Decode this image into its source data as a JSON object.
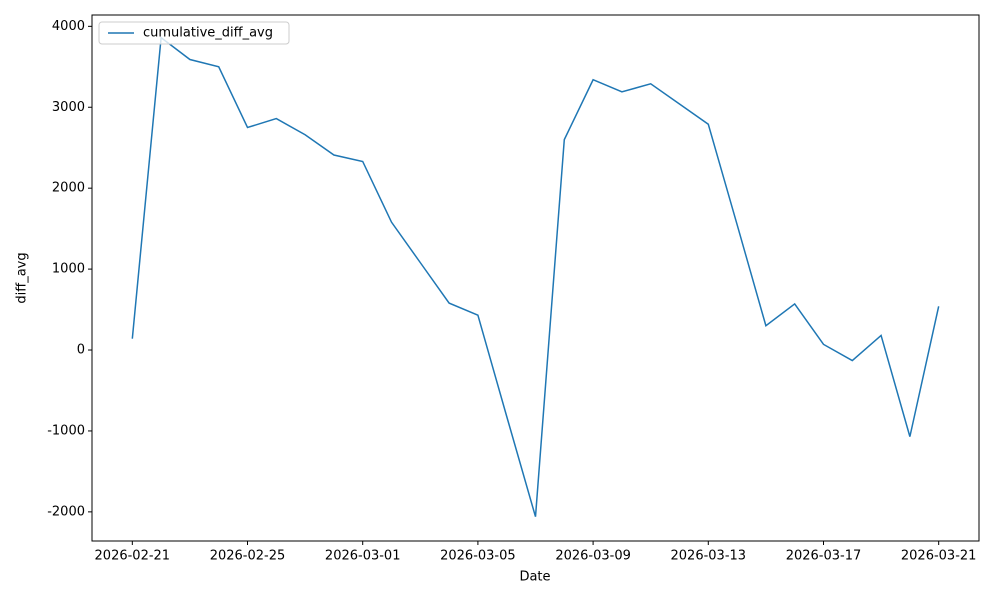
{
  "chart_data": {
    "type": "line",
    "x_label": "Date",
    "y_label": "diff_avg",
    "x": [
      "2026-02-21",
      "2026-02-22",
      "2026-02-23",
      "2026-02-24",
      "2026-02-25",
      "2026-02-26",
      "2026-02-27",
      "2026-02-28",
      "2026-03-01",
      "2026-03-02",
      "2026-03-03",
      "2026-03-04",
      "2026-03-05",
      "2026-03-06",
      "2026-03-07",
      "2026-03-08",
      "2026-03-09",
      "2026-03-10",
      "2026-03-11",
      "2026-03-12",
      "2026-03-13",
      "2026-03-14",
      "2026-03-15",
      "2026-03-16",
      "2026-03-17",
      "2026-03-18",
      "2026-03-19",
      "2026-03-20",
      "2026-03-21"
    ],
    "series": [
      {
        "name": "cumulative_diff_avg",
        "color": "#1f77b4",
        "values": [
          140,
          3860,
          3590,
          3500,
          2750,
          2860,
          2660,
          2410,
          2330,
          1580,
          1080,
          580,
          430,
          -820,
          -2060,
          2600,
          3340,
          3190,
          3290,
          3040,
          2790,
          1550,
          300,
          570,
          70,
          -130,
          180,
          -1070,
          540
        ]
      }
    ],
    "xlim": [
      "2026-02-19T14:24:00Z",
      "2026-03-22T09:36:00Z"
    ],
    "xticks": [
      "2026-02-21",
      "2026-02-25",
      "2026-03-01",
      "2026-03-05",
      "2026-03-09",
      "2026-03-13",
      "2026-03-17",
      "2026-03-21"
    ],
    "ylim": [
      -2360,
      4140
    ],
    "yticks": [
      -2000,
      -1000,
      0,
      1000,
      2000,
      3000,
      4000
    ],
    "legend": "upper left"
  }
}
